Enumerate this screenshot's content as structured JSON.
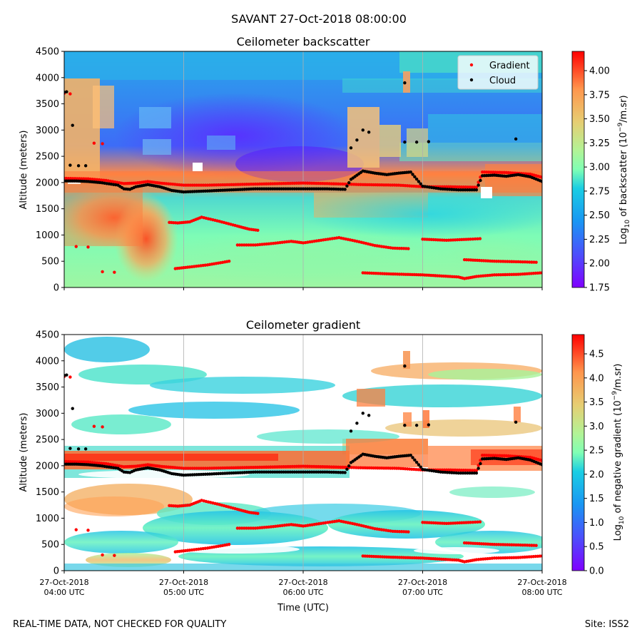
{
  "figure": {
    "suptitle": "SAVANT 27-Oct-2018 08:00:00",
    "footer_left": "REAL-TIME DATA, NOT CHECKED FOR QUALITY",
    "footer_right": "Site: ISS2",
    "xlabel": "Time (UTC)",
    "x_tick_labels": [
      [
        "27-Oct-2018",
        "04:00 UTC"
      ],
      [
        "27-Oct-2018",
        "05:00 UTC"
      ],
      [
        "27-Oct-2018",
        "06:00 UTC"
      ],
      [
        "27-Oct-2018",
        "07:00 UTC"
      ],
      [
        "27-Oct-2018",
        "08:00 UTC"
      ]
    ]
  },
  "chart_data": [
    {
      "type": "heatmap",
      "title": "Ceilometer backscatter",
      "xlabel": "",
      "ylabel": "Altitude (meters)",
      "xlim_hours_utc": [
        4,
        8
      ],
      "ylim": [
        0,
        4500
      ],
      "y_ticks": [
        0,
        500,
        1000,
        1500,
        2000,
        2500,
        3000,
        3500,
        4000,
        4500
      ],
      "colorbar": {
        "label_pre": "Log",
        "label_sub": "10",
        "label_mid": " of backscatter (10",
        "label_sup": "−9",
        "label_post": "/m.sr)",
        "range": [
          1.75,
          4.2
        ],
        "ticks": [
          1.75,
          2.0,
          2.25,
          2.5,
          2.75,
          3.0,
          3.25,
          3.5,
          3.75,
          4.0
        ],
        "tick_labels": [
          "1.75",
          "2.00",
          "2.25",
          "2.50",
          "2.75",
          "3.00",
          "3.25",
          "3.50",
          "3.75",
          "4.00"
        ],
        "colormap": "rainbow"
      },
      "legend": {
        "placement": "top-right",
        "entries": [
          {
            "name": "Gradient",
            "color": "#ff0000"
          },
          {
            "name": "Cloud",
            "color": "#000000"
          }
        ]
      }
    },
    {
      "type": "heatmap",
      "title": "Ceilometer gradient",
      "xlabel": "Time (UTC)",
      "ylabel": "Altitude (meters)",
      "xlim_hours_utc": [
        4,
        8
      ],
      "ylim": [
        0,
        4500
      ],
      "y_ticks": [
        0,
        500,
        1000,
        1500,
        2000,
        2500,
        3000,
        3500,
        4000,
        4500
      ],
      "colorbar": {
        "label_pre": "Log",
        "label_sub": "10",
        "label_mid": " of negative gradient (10",
        "label_sup": "−9",
        "label_post": "/m.sr)",
        "range": [
          0.0,
          4.9
        ],
        "ticks": [
          0.0,
          0.5,
          1.0,
          1.5,
          2.0,
          2.5,
          3.0,
          3.5,
          4.0,
          4.5
        ],
        "tick_labels": [
          "0.0",
          "0.5",
          "1.0",
          "1.5",
          "2.0",
          "2.5",
          "3.0",
          "3.5",
          "4.0",
          "4.5"
        ],
        "colormap": "rainbow"
      }
    }
  ],
  "series": {
    "cloud_base": {
      "name": "Cloud",
      "color": "#000000",
      "points": [
        [
          4.0,
          2030
        ],
        [
          4.1,
          2030
        ],
        [
          4.2,
          2020
        ],
        [
          4.3,
          2000
        ],
        [
          4.45,
          1950
        ],
        [
          4.5,
          1880
        ],
        [
          4.55,
          1870
        ],
        [
          4.6,
          1920
        ],
        [
          4.7,
          1960
        ],
        [
          4.8,
          1920
        ],
        [
          4.9,
          1850
        ],
        [
          5.0,
          1820
        ],
        [
          5.2,
          1840
        ],
        [
          5.4,
          1860
        ],
        [
          5.6,
          1880
        ],
        [
          5.8,
          1880
        ],
        [
          6.0,
          1880
        ],
        [
          6.2,
          1880
        ],
        [
          6.35,
          1870
        ],
        [
          6.4,
          2060
        ],
        [
          6.5,
          2220
        ],
        [
          6.6,
          2180
        ],
        [
          6.7,
          2150
        ],
        [
          6.8,
          2180
        ],
        [
          6.9,
          2200
        ],
        [
          7.0,
          1930
        ],
        [
          7.15,
          1880
        ],
        [
          7.3,
          1860
        ],
        [
          7.45,
          1860
        ],
        [
          7.5,
          2130
        ],
        [
          7.6,
          2140
        ],
        [
          7.7,
          2120
        ],
        [
          7.8,
          2150
        ],
        [
          7.9,
          2110
        ],
        [
          8.0,
          2020
        ]
      ]
    },
    "gradient_upper": {
      "name": "Gradient",
      "color": "#ff0000",
      "points": [
        [
          4.0,
          2080
        ],
        [
          4.2,
          2070
        ],
        [
          4.35,
          2040
        ],
        [
          4.5,
          1980
        ],
        [
          4.6,
          1990
        ],
        [
          4.7,
          2020
        ],
        [
          4.8,
          1990
        ],
        [
          5.0,
          1950
        ],
        [
          5.2,
          1950
        ],
        [
          5.4,
          1960
        ],
        [
          5.6,
          1970
        ],
        [
          5.8,
          1980
        ],
        [
          6.0,
          1990
        ],
        [
          6.2,
          1980
        ],
        [
          6.35,
          1970
        ],
        [
          6.5,
          1960
        ],
        [
          6.8,
          1950
        ],
        [
          7.0,
          1920
        ],
        [
          7.2,
          1920
        ],
        [
          7.45,
          1910
        ],
        [
          7.5,
          2200
        ],
        [
          7.7,
          2190
        ],
        [
          7.9,
          2160
        ],
        [
          8.0,
          2100
        ]
      ]
    },
    "gradient_mid": {
      "name": "Gradient",
      "color": "#ff0000",
      "points": [
        [
          4.88,
          1240
        ],
        [
          4.95,
          1230
        ],
        [
          5.05,
          1250
        ],
        [
          5.15,
          1340
        ],
        [
          5.3,
          1260
        ],
        [
          5.45,
          1170
        ],
        [
          5.55,
          1110
        ],
        [
          5.62,
          1090
        ]
      ]
    },
    "gradient_mid2": {
      "name": "Gradient",
      "color": "#ff0000",
      "points": [
        [
          5.45,
          810
        ],
        [
          5.6,
          810
        ],
        [
          5.75,
          840
        ],
        [
          5.9,
          880
        ],
        [
          6.0,
          850
        ],
        [
          6.15,
          900
        ],
        [
          6.3,
          950
        ],
        [
          6.45,
          880
        ],
        [
          6.6,
          800
        ],
        [
          6.75,
          750
        ],
        [
          6.88,
          740
        ]
      ]
    },
    "gradient_mid3": {
      "name": "Gradient",
      "color": "#ff0000",
      "points": [
        [
          7.0,
          920
        ],
        [
          7.2,
          900
        ],
        [
          7.4,
          920
        ],
        [
          7.48,
          930
        ]
      ]
    },
    "gradient_low": {
      "name": "Gradient",
      "color": "#ff0000",
      "points": [
        [
          4.93,
          360
        ],
        [
          5.05,
          390
        ],
        [
          5.2,
          430
        ],
        [
          5.38,
          500
        ]
      ]
    },
    "gradient_low2": {
      "name": "Gradient",
      "color": "#ff0000",
      "points": [
        [
          6.5,
          280
        ],
        [
          6.7,
          260
        ],
        [
          7.0,
          240
        ],
        [
          7.3,
          200
        ],
        [
          7.35,
          170
        ],
        [
          7.45,
          210
        ],
        [
          7.6,
          240
        ],
        [
          7.8,
          250
        ],
        [
          8.0,
          280
        ]
      ]
    },
    "gradient_low3": {
      "name": "Gradient",
      "color": "#ff0000",
      "points": [
        [
          7.35,
          530
        ],
        [
          7.6,
          500
        ],
        [
          7.8,
          490
        ],
        [
          7.95,
          480
        ]
      ]
    },
    "gradient_fragments": {
      "name": "Gradient",
      "color": "#ff0000",
      "points": [
        [
          4.1,
          780
        ],
        [
          4.2,
          770
        ],
        [
          4.32,
          300
        ],
        [
          4.42,
          290
        ],
        [
          4.25,
          2750
        ],
        [
          4.32,
          2740
        ],
        [
          4.0,
          3700
        ],
        [
          4.05,
          3690
        ]
      ]
    },
    "cloud_fragments": {
      "name": "Cloud",
      "color": "#000000",
      "points": [
        [
          4.0,
          3720
        ],
        [
          4.02,
          3730
        ],
        [
          4.07,
          3090
        ],
        [
          4.05,
          2330
        ],
        [
          4.12,
          2320
        ],
        [
          4.18,
          2320
        ],
        [
          6.4,
          2660
        ],
        [
          6.45,
          2810
        ],
        [
          6.5,
          3000
        ],
        [
          6.55,
          2960
        ],
        [
          6.85,
          3900
        ],
        [
          6.85,
          2770
        ],
        [
          6.95,
          2770
        ],
        [
          7.05,
          2780
        ],
        [
          7.78,
          2830
        ]
      ]
    }
  }
}
